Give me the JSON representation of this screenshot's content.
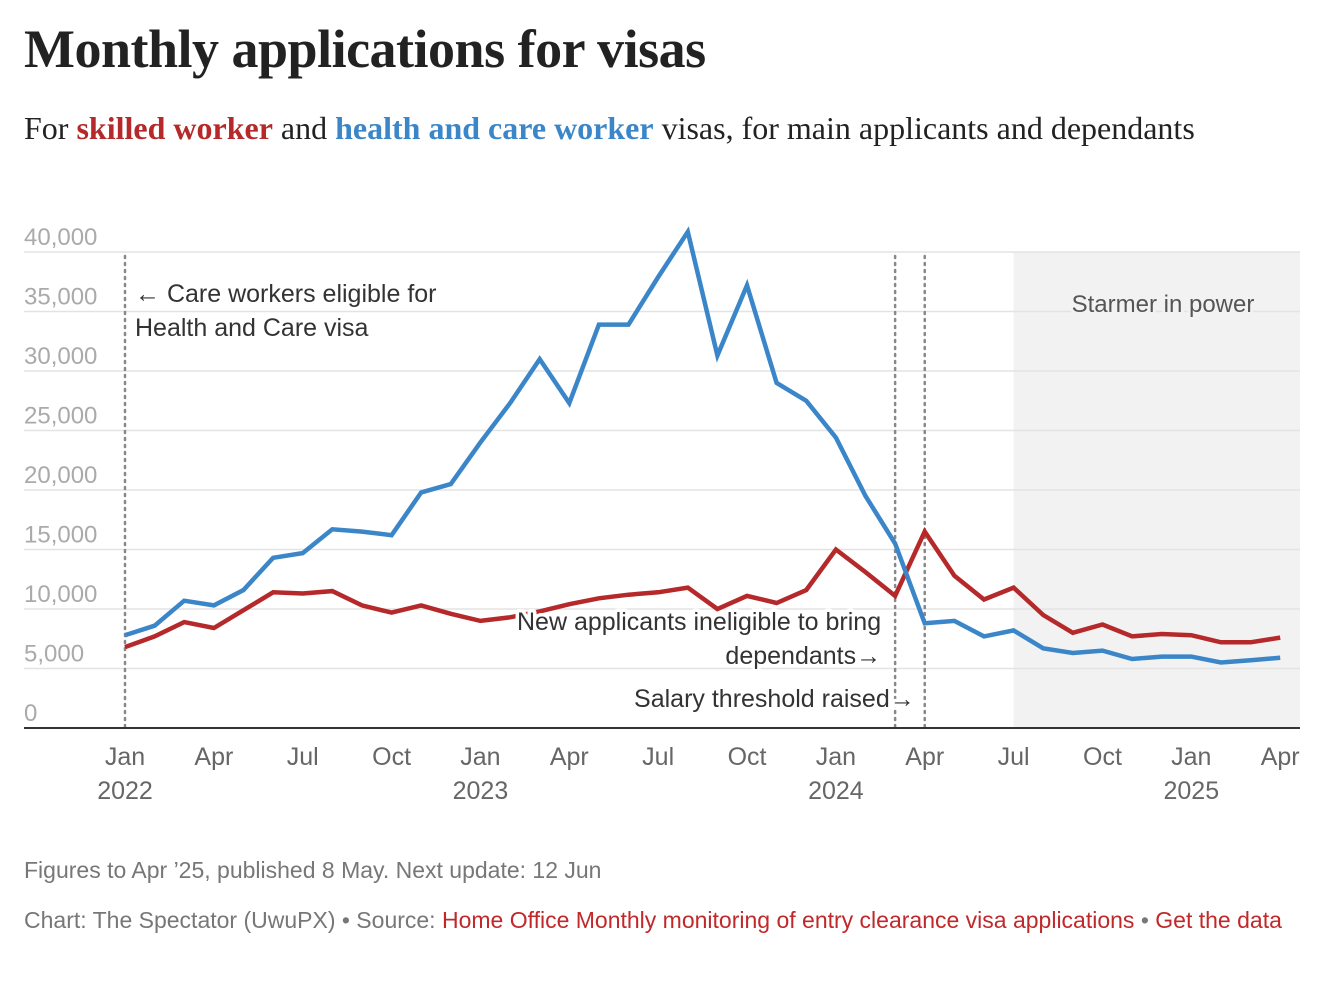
{
  "title": "Monthly applications for visas",
  "subtitle": {
    "prefix": "For ",
    "series1": "skilled worker",
    "middle": " and ",
    "series2": "health and care worker",
    "suffix": " visas, for main applicants and dependants"
  },
  "chart_data": {
    "type": "line",
    "title": "Monthly applications for visas",
    "ylim": [
      0,
      40000
    ],
    "yticks": [
      0,
      5000,
      10000,
      15000,
      20000,
      25000,
      30000,
      35000,
      40000
    ],
    "ytick_labels": [
      "0",
      "5,000",
      "10,000",
      "15,000",
      "20,000",
      "25,000",
      "30,000",
      "35,000",
      "40,000"
    ],
    "x_start": "2022-01",
    "xticks": [
      {
        "index": 0,
        "month": "Jan",
        "year": "2022"
      },
      {
        "index": 3,
        "month": "Apr",
        "year": ""
      },
      {
        "index": 6,
        "month": "Jul",
        "year": ""
      },
      {
        "index": 9,
        "month": "Oct",
        "year": ""
      },
      {
        "index": 12,
        "month": "Jan",
        "year": "2023"
      },
      {
        "index": 15,
        "month": "Apr",
        "year": ""
      },
      {
        "index": 18,
        "month": "Jul",
        "year": ""
      },
      {
        "index": 21,
        "month": "Oct",
        "year": ""
      },
      {
        "index": 24,
        "month": "Jan",
        "year": "2024"
      },
      {
        "index": 27,
        "month": "Apr",
        "year": ""
      },
      {
        "index": 30,
        "month": "Jul",
        "year": ""
      },
      {
        "index": 33,
        "month": "Oct",
        "year": ""
      },
      {
        "index": 36,
        "month": "Jan",
        "year": "2025"
      },
      {
        "index": 39,
        "month": "Apr",
        "year": ""
      }
    ],
    "series": [
      {
        "name": "skilled worker",
        "color": "#b5292a",
        "values": [
          6800,
          7700,
          8900,
          8400,
          9900,
          11400,
          11300,
          11500,
          10300,
          9700,
          10300,
          9600,
          9000,
          9300,
          9800,
          10400,
          10900,
          11200,
          11400,
          11800,
          10000,
          11100,
          10500,
          11600,
          15000,
          13100,
          11100,
          16500,
          12800,
          10800,
          11800,
          9500,
          8000,
          8700,
          7700,
          7900,
          7800,
          7200,
          7200,
          7600
        ]
      },
      {
        "name": "health and care worker",
        "color": "#3a86c8",
        "values": [
          7800,
          8600,
          10700,
          10300,
          11600,
          14300,
          14700,
          16700,
          16500,
          16200,
          19800,
          20500,
          24000,
          27300,
          31000,
          27300,
          33900,
          33900,
          37900,
          41700,
          31300,
          37200,
          29000,
          27500,
          24400,
          19500,
          15500,
          8800,
          9000,
          7700,
          8200,
          6700,
          6300,
          6500,
          5800,
          6000,
          6000,
          5500,
          5700,
          5900
        ]
      }
    ],
    "shaded_region": {
      "start_index": 30,
      "end_index": 40,
      "label": "Starmer in power"
    },
    "annotations": [
      {
        "index": 0,
        "text": [
          "← Care workers eligible for",
          "Health and Care visa"
        ]
      },
      {
        "index": 26,
        "text": [
          "New applicants ineligible to bring",
          "dependants→"
        ]
      },
      {
        "index": 27,
        "text": [
          "Salary threshold raised→"
        ]
      }
    ]
  },
  "footer": {
    "note": "Figures to Apr ’25, published 8 May. Next update: 12 Jun",
    "credit": "Chart: The Spectator (UwuPX) • Source: ",
    "source_link": "Home Office Monthly monitoring of entry clearance visa applications",
    "separator": " • ",
    "data_link": "Get the data"
  }
}
